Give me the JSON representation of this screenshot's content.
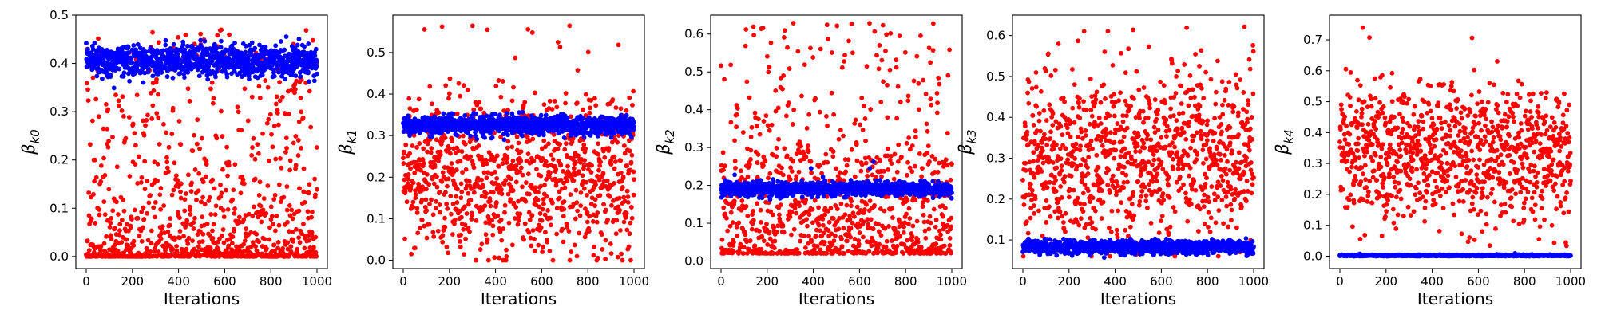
{
  "chart_data": [
    {
      "type": "scatter",
      "ylabel": {
        "symbol": "β",
        "subscript": "k0"
      },
      "xlabel": "Iterations",
      "xlim": [
        -45,
        1045
      ],
      "ylim": [
        -0.025,
        0.5
      ],
      "xticks": [
        0,
        200,
        400,
        600,
        800,
        1000
      ],
      "yticks": [
        0.0,
        0.1,
        0.2,
        0.3,
        0.4,
        0.5
      ],
      "yticklabels": [
        "0.0",
        "0.1",
        "0.2",
        "0.3",
        "0.4",
        "0.5"
      ],
      "series": [
        {
          "color": "#ff0000",
          "x_range": [
            0,
            1000
          ],
          "y_range": [
            0.0,
            0.47
          ],
          "typical_range": [
            0.0,
            0.1
          ],
          "points_per_series": 1000
        },
        {
          "color": "#0000ff",
          "x_range": [
            0,
            1000
          ],
          "y_range": [
            0.31,
            0.46
          ],
          "typical_range": [
            0.37,
            0.44
          ],
          "points_per_series": 1000
        }
      ]
    },
    {
      "type": "scatter",
      "ylabel": {
        "symbol": "β",
        "subscript": "k1"
      },
      "xlabel": "Iterations",
      "xlim": [
        -45,
        1045
      ],
      "ylim": [
        -0.02,
        0.59
      ],
      "xticks": [
        0,
        200,
        400,
        600,
        800,
        1000
      ],
      "yticks": [
        0.0,
        0.1,
        0.2,
        0.3,
        0.4,
        0.5
      ],
      "yticklabels": [
        "0.0",
        "0.1",
        "0.2",
        "0.3",
        "0.4",
        "0.5"
      ],
      "series": [
        {
          "color": "#ff0000",
          "x_range": [
            0,
            1000
          ],
          "y_range": [
            0.0,
            0.57
          ],
          "typical_range": [
            0.02,
            0.4
          ],
          "points_per_series": 1000
        },
        {
          "color": "#0000ff",
          "x_range": [
            0,
            1000
          ],
          "y_range": [
            0.28,
            0.37
          ],
          "typical_range": [
            0.3,
            0.35
          ],
          "points_per_series": 1000
        }
      ]
    },
    {
      "type": "scatter",
      "ylabel": {
        "symbol": "β",
        "subscript": "k2"
      },
      "xlabel": "Iterations",
      "xlim": [
        -45,
        1045
      ],
      "ylim": [
        -0.02,
        0.65
      ],
      "xticks": [
        0,
        200,
        400,
        600,
        800,
        1000
      ],
      "yticks": [
        0.0,
        0.1,
        0.2,
        0.3,
        0.4,
        0.5,
        0.6
      ],
      "yticklabels": [
        "0.0",
        "0.1",
        "0.2",
        "0.3",
        "0.4",
        "0.5",
        "0.6"
      ],
      "series": [
        {
          "color": "#ff0000",
          "x_range": [
            0,
            1000
          ],
          "y_range": [
            0.0,
            0.63
          ],
          "typical_range": [
            0.02,
            0.3
          ],
          "points_per_series": 1000
        },
        {
          "color": "#0000ff",
          "x_range": [
            0,
            1000
          ],
          "y_range": [
            0.15,
            0.32
          ],
          "typical_range": [
            0.17,
            0.21
          ],
          "points_per_series": 1000
        }
      ]
    },
    {
      "type": "scatter",
      "ylabel": {
        "symbol": "β",
        "subscript": "k3"
      },
      "xlabel": "Iterations",
      "xlim": [
        -45,
        1045
      ],
      "ylim": [
        0.03,
        0.65
      ],
      "xticks": [
        0,
        200,
        400,
        600,
        800,
        1000
      ],
      "yticks": [
        0.1,
        0.2,
        0.3,
        0.4,
        0.5,
        0.6
      ],
      "yticklabels": [
        "0.1",
        "0.2",
        "0.3",
        "0.4",
        "0.5",
        "0.6"
      ],
      "series": [
        {
          "color": "#ff0000",
          "x_range": [
            0,
            1000
          ],
          "y_range": [
            0.06,
            0.63
          ],
          "typical_range": [
            0.1,
            0.5
          ],
          "points_per_series": 1000
        },
        {
          "color": "#0000ff",
          "x_range": [
            0,
            1000
          ],
          "y_range": [
            0.03,
            0.11
          ],
          "typical_range": [
            0.065,
            0.1
          ],
          "points_per_series": 1000
        }
      ]
    },
    {
      "type": "scatter",
      "ylabel": {
        "symbol": "β",
        "subscript": "k4"
      },
      "xlabel": "Iterations",
      "xlim": [
        -45,
        1045
      ],
      "ylim": [
        -0.04,
        0.78
      ],
      "xticks": [
        0,
        200,
        400,
        600,
        800,
        1000
      ],
      "yticks": [
        0.0,
        0.1,
        0.2,
        0.3,
        0.4,
        0.5,
        0.6,
        0.7
      ],
      "yticklabels": [
        "0.0",
        "0.1",
        "0.2",
        "0.3",
        "0.4",
        "0.5",
        "0.6",
        "0.7"
      ],
      "series": [
        {
          "color": "#ff0000",
          "x_range": [
            0,
            1000
          ],
          "y_range": [
            0.0,
            0.74
          ],
          "typical_range": [
            0.12,
            0.55
          ],
          "points_per_series": 1000
        },
        {
          "color": "#0000ff",
          "x_range": [
            0,
            1000
          ],
          "y_range": [
            0.0,
            0.01
          ],
          "typical_range": [
            0.0,
            0.005
          ],
          "points_per_series": 1000
        }
      ]
    }
  ]
}
